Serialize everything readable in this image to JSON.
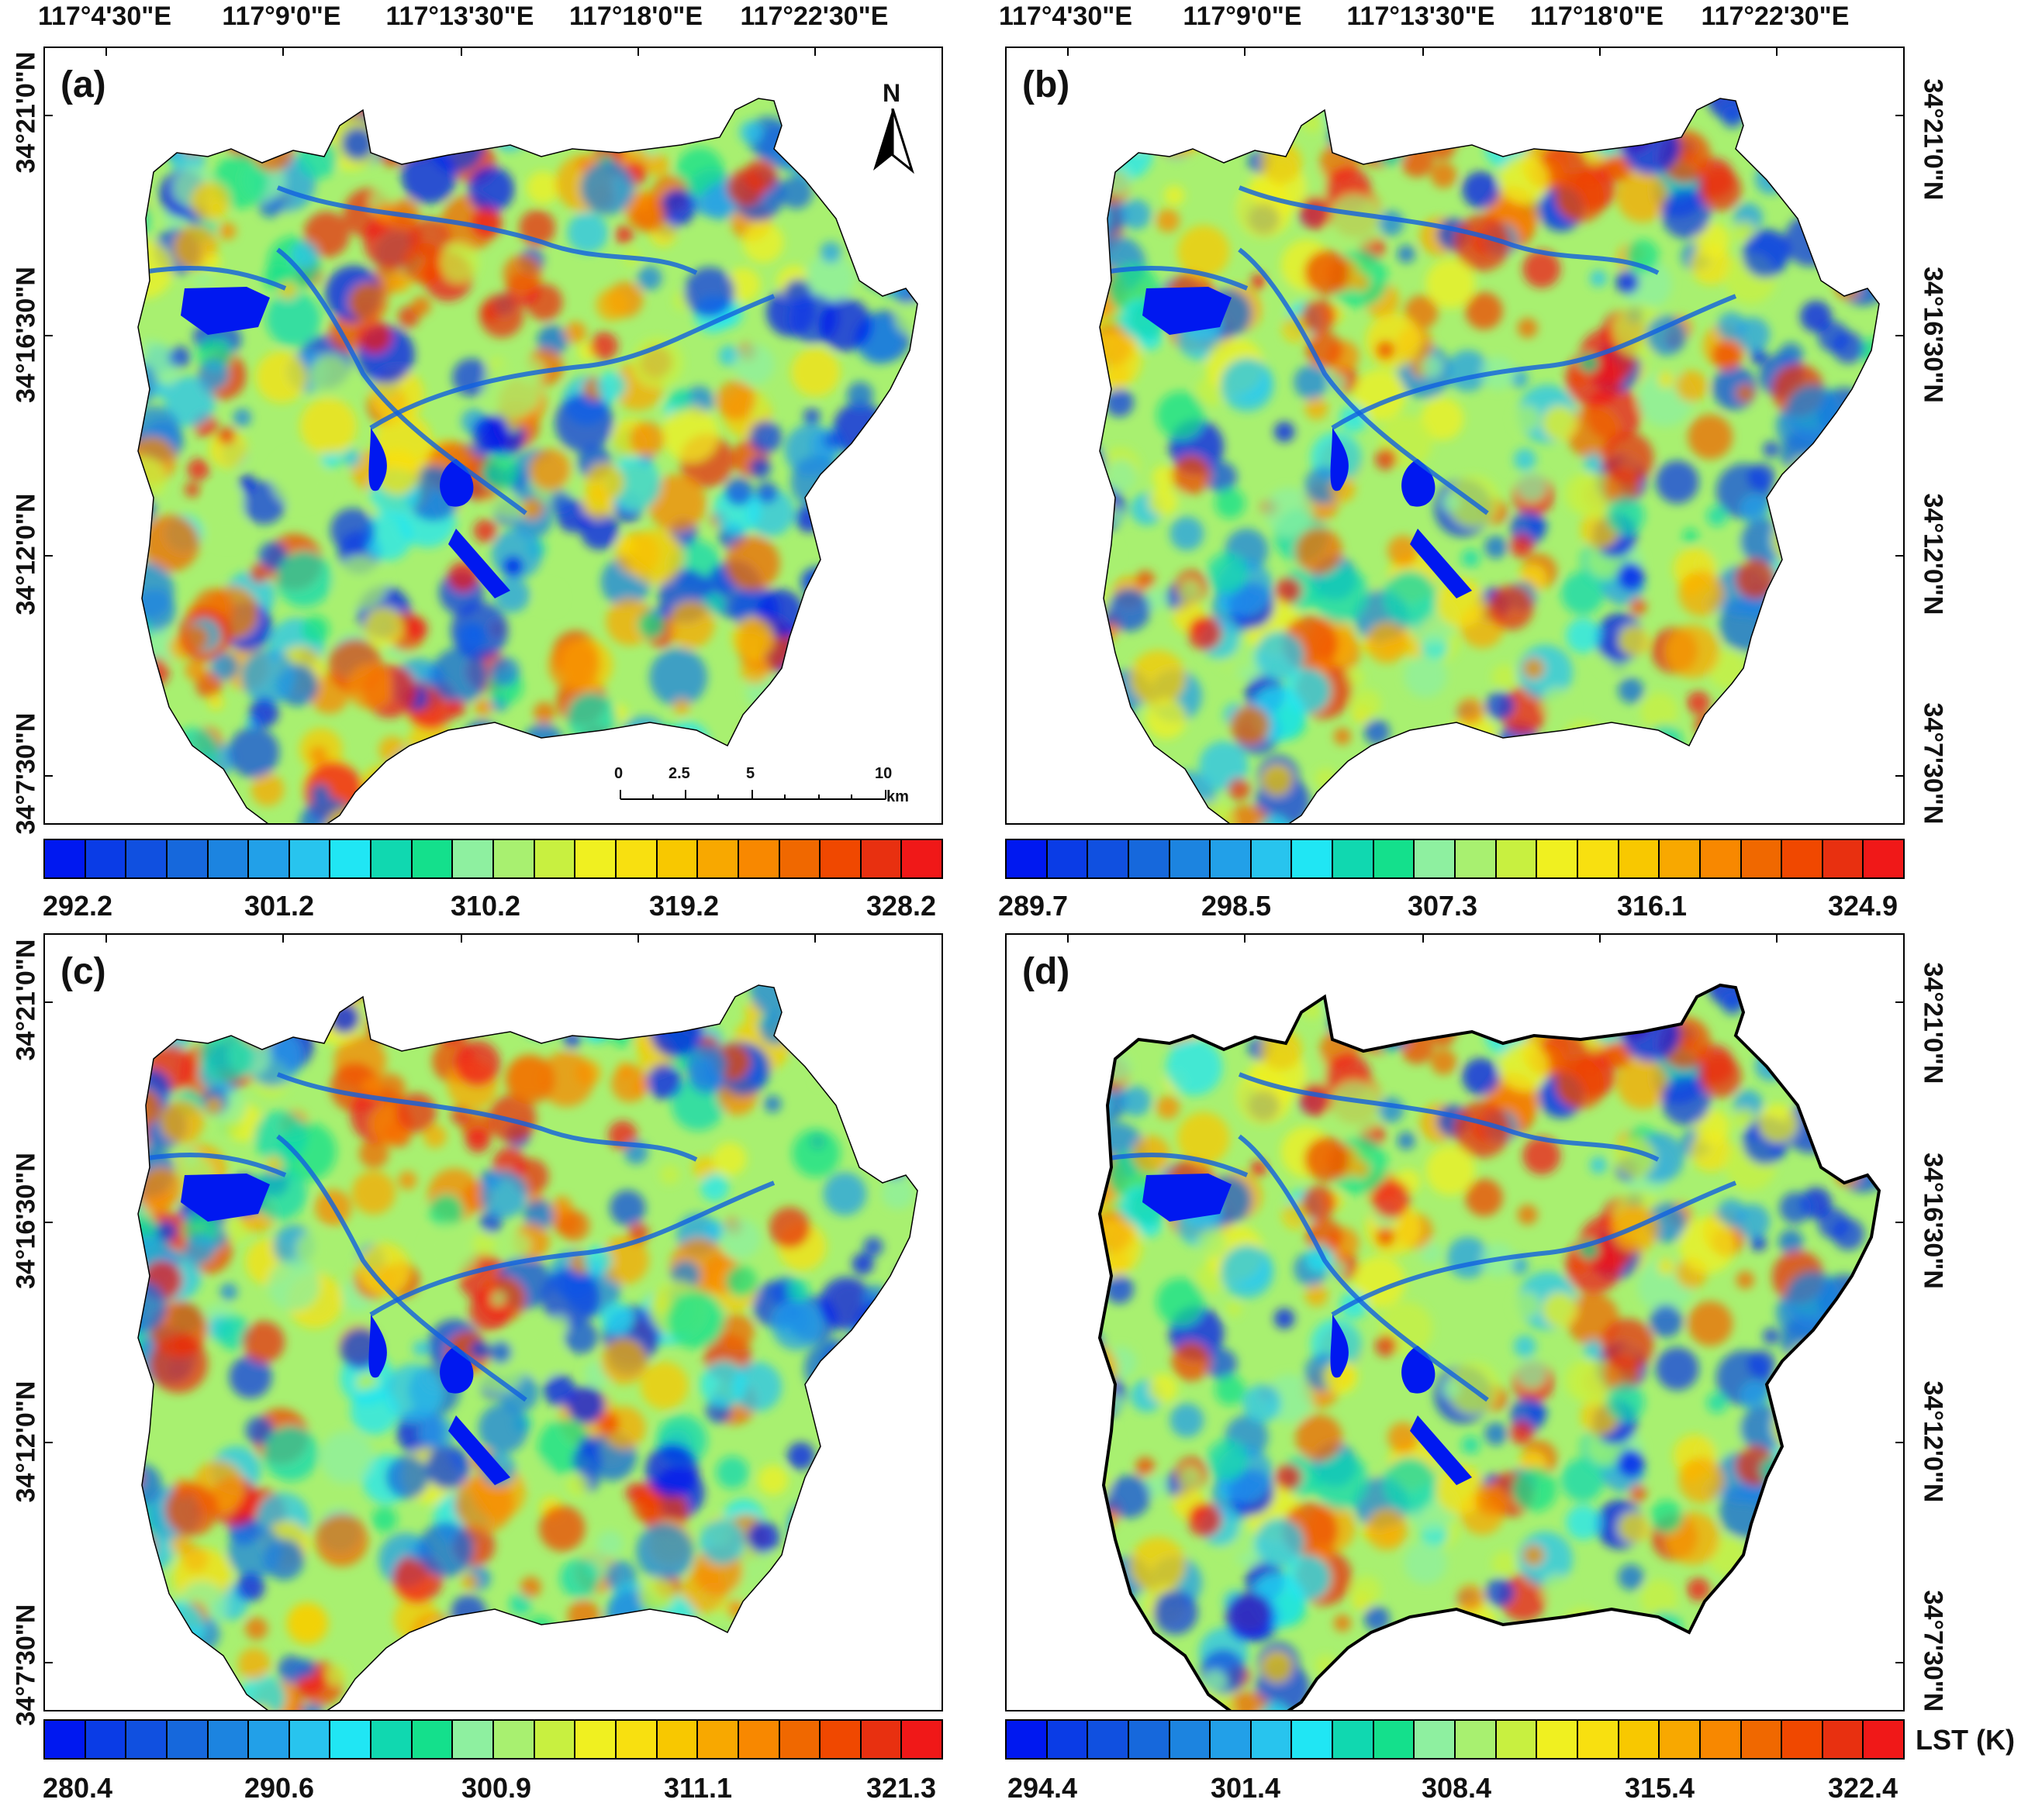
{
  "longitude_labels": [
    "117°4'30\"E",
    "117°9'0\"E",
    "117°13'30\"E",
    "117°18'0\"E",
    "117°22'30\"E"
  ],
  "latitude_labels": [
    "34°21'0\"N",
    "34°16'30\"N",
    "34°12'0\"N",
    "34°7'30\"N"
  ],
  "north_label": "N",
  "scale": {
    "ticks": [
      "0",
      "2.5",
      "5",
      "10"
    ],
    "unit": "km"
  },
  "legend_title": "LST (K)",
  "panels": [
    {
      "label": "(a)",
      "colorbar_ticks": [
        "292.2",
        "301.2",
        "310.2",
        "319.2",
        "328.2"
      ]
    },
    {
      "label": "(b)",
      "colorbar_ticks": [
        "289.7",
        "298.5",
        "307.3",
        "316.1",
        "324.9"
      ]
    },
    {
      "label": "(c)",
      "colorbar_ticks": [
        "280.4",
        "290.6",
        "300.9",
        "311.1",
        "321.3"
      ]
    },
    {
      "label": "(d)",
      "colorbar_ticks": [
        "294.4",
        "301.4",
        "308.4",
        "315.4",
        "322.4"
      ]
    }
  ],
  "colors": [
    "#0018f0",
    "#0a3ce6",
    "#1050e0",
    "#1668dc",
    "#1c84e0",
    "#22a0e8",
    "#28c4ee",
    "#20e6f4",
    "#10d8b0",
    "#14e08c",
    "#8ef0a0",
    "#a8f070",
    "#c8f040",
    "#f0f020",
    "#f8e010",
    "#f8c800",
    "#f8a800",
    "#f88800",
    "#f06800",
    "#f04800",
    "#e83010",
    "#f01818"
  ]
}
